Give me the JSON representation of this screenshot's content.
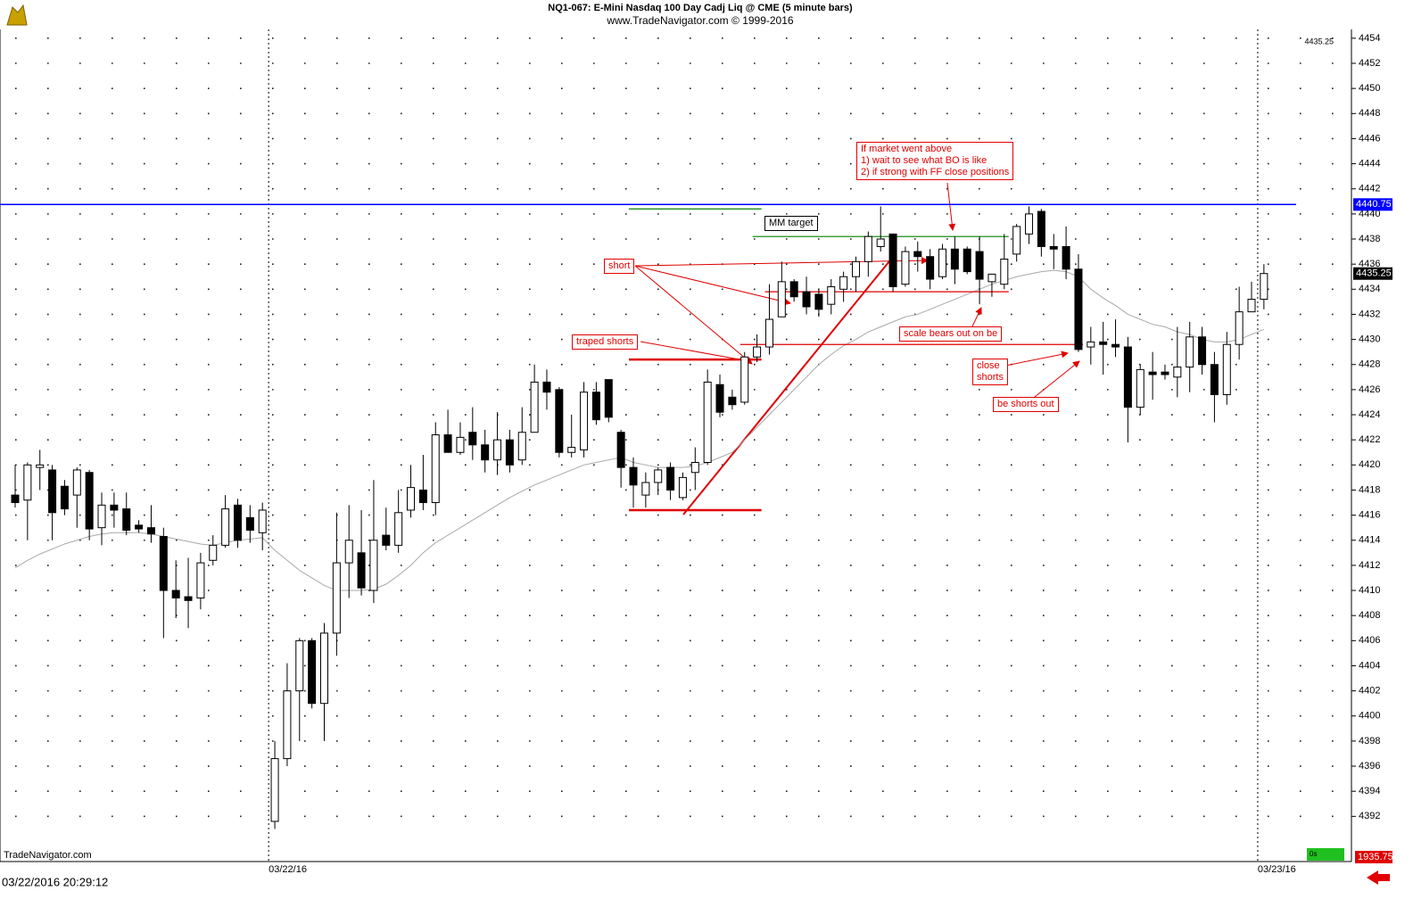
{
  "chart_data": {
    "type": "candlestick",
    "title": "NQ1-067:  E-Mini Nasdaq 100 Day Cadj Liq @ CME  (5 minute bars)",
    "subtitle": "www.TradeNavigator.com © 1999-2016",
    "categories": [
      null,
      null,
      null,
      null,
      null,
      null,
      null,
      null,
      null,
      null,
      null,
      null,
      null,
      null,
      null,
      null,
      null,
      null,
      null,
      null,
      null,
      "03/22/16",
      null,
      null,
      null,
      null,
      null,
      null,
      null,
      null,
      null,
      null,
      null,
      null,
      null,
      null,
      null,
      null,
      null,
      null,
      null,
      null,
      null,
      null,
      null,
      null,
      null,
      null,
      null,
      null,
      null,
      null,
      null,
      null,
      null,
      null,
      null,
      null,
      null,
      null,
      null,
      null,
      null,
      null,
      null,
      null,
      null,
      null,
      null,
      null,
      null,
      null,
      null,
      null,
      null,
      null,
      null,
      null,
      null,
      null,
      null,
      null,
      null,
      null,
      null,
      null,
      null,
      null,
      null,
      null,
      null,
      null,
      null,
      null,
      null,
      null,
      null,
      null,
      null,
      null,
      null,
      "03/23/16"
    ],
    "open": [
      4417.6,
      4417.2,
      4419.8,
      4419.6,
      4418.3,
      4417.6,
      4419.4,
      4415,
      4416.8,
      4416.5,
      4415.2,
      4415,
      4414.3,
      4410,
      4409.5,
      4409.4,
      4412.4,
      4413.6,
      4416.8,
      4415.8,
      4414.6,
      4391.6,
      4396.6,
      4402,
      4406,
      4401,
      4406.6,
      4412.2,
      4413,
      4410,
      4414.4,
      4413.6,
      4416.4,
      4418,
      4417,
      4422.4,
      4421,
      4422.6,
      4421.6,
      4420.4,
      4422,
      4420.4,
      4422.6,
      4426.6,
      4426,
      4421,
      4421.2,
      4425.8,
      4426.8,
      4422.6,
      4419.8,
      4417.6,
      4418.6,
      4419.8,
      4417.4,
      4419.4,
      4420.2,
      4426.4,
      4425.4,
      4425,
      4428.6,
      4429.4,
      4431.8,
      4434.6,
      4433.8,
      4433.6,
      4432.8,
      4434,
      4435,
      4436.2,
      4437.4,
      4438.4,
      4434.4,
      4437,
      4436.6,
      4435,
      4437.2,
      4437.2,
      4437,
      4434.6,
      4434.4,
      4436.8,
      4438.4,
      4440.2,
      4437.4,
      4437.4,
      4435.6,
      4429.4,
      4429.8,
      4429.6,
      4429.4,
      4424.6,
      4427.4,
      4427.4,
      4427,
      4427.8,
      4430.2,
      4428,
      4425.6,
      4429.6,
      4432.2,
      4433.2
    ],
    "high": [
      4420,
      4420.2,
      4421.2,
      4420,
      4418.8,
      4419.8,
      4419.6,
      4417.8,
      4417.8,
      4417.8,
      4415.6,
      4416.8,
      4415,
      4412.4,
      4412.6,
      4413,
      4414.4,
      4417.6,
      4417.3,
      4416.8,
      4417,
      4398,
      4404.2,
      4406.2,
      4406.2,
      4407.4,
      4416.2,
      4416.8,
      4416.4,
      4418.8,
      4416.6,
      4418,
      4420,
      4420.8,
      4423.4,
      4424.4,
      4423.4,
      4424.6,
      4422.8,
      4424.2,
      4422.8,
      4424.6,
      4428,
      4427.6,
      4426.2,
      4424,
      4426.6,
      4426.6,
      4426.8,
      4422.8,
      4420.6,
      4419.4,
      4419.8,
      4420.2,
      4419.4,
      4421.4,
      4427.6,
      4427.2,
      4426,
      4429,
      4430.4,
      4434.4,
      4436.2,
      4434.8,
      4435,
      4434,
      4434.8,
      4435.4,
      4436.6,
      4438.6,
      4440.6,
      4438.4,
      4437.4,
      4437.8,
      4437.2,
      4437.6,
      4438.2,
      4437.4,
      4438.2,
      4435.2,
      4438.4,
      4439.2,
      4440.6,
      4440.4,
      4438.4,
      4439,
      4436.8,
      4431,
      4431.4,
      4431.6,
      4430.2,
      4428,
      4429,
      4428,
      4431,
      4431.4,
      4431,
      4429,
      4430.6,
      4434.2,
      4434.6,
      4436
    ],
    "low": [
      4416.6,
      4414,
      4418,
      4414,
      4416,
      4415,
      4414,
      4413.6,
      4415,
      4414.4,
      4414.6,
      4413.8,
      4406.2,
      4407.8,
      4407,
      4408.5,
      4412,
      4413.4,
      4413.4,
      4413.8,
      4413.2,
      4391,
      4396,
      4398,
      4400.6,
      4398,
      4404.8,
      4409.4,
      4409.6,
      4409,
      4413.2,
      4413,
      4415.8,
      4416.4,
      4416,
      4421,
      4420.8,
      4420.4,
      4419.4,
      4419.2,
      4419.4,
      4420,
      4422.6,
      4424.4,
      4420.6,
      4420.6,
      4420.6,
      4423.2,
      4423.4,
      4418.2,
      4416.6,
      4416.6,
      4417.6,
      4417.2,
      4417.2,
      4418,
      4420,
      4423.8,
      4424.4,
      4424.8,
      4428.2,
      4428.8,
      4431.8,
      4433,
      4432,
      4431.8,
      4432,
      4433,
      4433.8,
      4435,
      4437,
      4433.8,
      4434.2,
      4435.4,
      4434,
      4434.8,
      4434.4,
      4435.2,
      4432.8,
      4433.4,
      4434,
      4436.2,
      4437.6,
      4436.6,
      4435.6,
      4434.8,
      4429,
      4428,
      4427.2,
      4428.6,
      4421.8,
      4424,
      4425.2,
      4426.8,
      4425.4,
      4425.8,
      4427.2,
      4423.4,
      4424.8,
      4428.4,
      4432.2,
      4432.4
    ],
    "close": [
      4417,
      4420,
      4420,
      4416.2,
      4416.5,
      4419.6,
      4414.9,
      4416.8,
      4416.4,
      4414.8,
      4414.9,
      4414.5,
      4410,
      4409.4,
      4409.2,
      4412.2,
      4413.6,
      4416.5,
      4414,
      4414.8,
      4416.4,
      4396.6,
      4402,
      4406,
      4401,
      4406.6,
      4412.2,
      4414,
      4410.2,
      4414,
      4413.6,
      4416.2,
      4418.2,
      4417,
      4422.4,
      4421,
      4422.2,
      4421.6,
      4420.4,
      4422,
      4420,
      4422.6,
      4426.6,
      4425.8,
      4421,
      4421.4,
      4425.8,
      4423.6,
      4423.8,
      4419.8,
      4418.4,
      4418.6,
      4419.6,
      4418,
      4419,
      4420.2,
      4426.6,
      4424.2,
      4424.8,
      4428.6,
      4429.4,
      4431.6,
      4434.6,
      4433.4,
      4432.6,
      4432.4,
      4434.2,
      4435,
      4436.2,
      4438.2,
      4438,
      4434.2,
      4437,
      4436.6,
      4434.8,
      4437.2,
      4435.6,
      4435.4,
      4434.8,
      4435.2,
      4436.4,
      4439,
      4440,
      4437.4,
      4437.2,
      4435.6,
      4429.2,
      4429.8,
      4429.6,
      4429.4,
      4424.6,
      4427.6,
      4427.2,
      4427.2,
      4427.8,
      4430.2,
      4428,
      4425.6,
      4429.6,
      4432.2,
      4433.2,
      4435.25
    ],
    "up_color": "#ffffff",
    "down_color": "#000000",
    "lines": [
      {
        "color": "#a8a8a8",
        "values": [
          4411.8,
          4412.4,
          4412.9,
          4413.3,
          4413.7,
          4414,
          4414.3,
          4414.5,
          4414.6,
          4414.6,
          4414.6,
          4414.5,
          4414.3,
          4414.1,
          4413.9,
          4413.7,
          4413.6,
          4413.8,
          4414,
          4414.1,
          4414.2,
          4413.2,
          4412.4,
          4411.6,
          4411,
          4410.4,
          4410,
          4410,
          4410,
          4410.1,
          4410.5,
          4411.2,
          4412,
          4413,
          4413.8,
          4414.4,
          4415,
          4415.6,
          4416.2,
          4416.8,
          4417.4,
          4417.9,
          4418.4,
          4418.8,
          4419.2,
          4419.6,
          4420,
          4420.2,
          4420.4,
          4420.6,
          4420.2,
          4420,
          4419.8,
          4419.8,
          4419.8,
          4419.9,
          4420.2,
          4420.6,
          4421,
          4422,
          4423,
          4424,
          4425,
          4426,
          4427,
          4428,
          4428.8,
          4429.5,
          4430,
          4430.6,
          4431,
          4431.4,
          4431.8,
          4432,
          4432.4,
          4432.8,
          4433.2,
          4433.6,
          4434,
          4434.4,
          4434.7,
          4435,
          4435.2,
          4435.4,
          4435.5,
          4435.4,
          4435,
          4434,
          4433.3,
          4432.7,
          4432,
          4431.6,
          4431.2,
          4431,
          4430.6,
          4430.4,
          4430,
          4429.8,
          4429.8,
          4430,
          4430.4,
          4430.8
        ]
      }
    ],
    "levels": [
      {
        "value": 4440.75,
        "color": "#0000ff"
      }
    ],
    "segments": [
      {
        "value": 4440.4,
        "from": 50,
        "to": 60,
        "color": "#008000"
      },
      {
        "value": 4438.2,
        "from": 60,
        "to": 80,
        "color": "#008000"
      },
      {
        "value": 4428.4,
        "from": 50,
        "to": 60,
        "color": "#e00000"
      },
      {
        "value": 4416.4,
        "from": 50,
        "to": 60,
        "color": "#e00000"
      },
      {
        "value": 4433.8,
        "from": 61,
        "to": 80,
        "color": "#e00000"
      },
      {
        "value": 4429.6,
        "from": 59,
        "to": 86,
        "color": "#e00000"
      }
    ],
    "ylim": [
      4388.4,
      4454.7
    ],
    "yticks": [
      4392,
      4394,
      4396,
      4398,
      4400,
      4402,
      4404,
      4406,
      4408,
      4410,
      4412,
      4414,
      4416,
      4418,
      4420,
      4422,
      4424,
      4426,
      4428,
      4430,
      4432,
      4434,
      4436,
      4438,
      4440,
      4442,
      4444,
      4446,
      4448,
      4450,
      4452,
      4454
    ],
    "grid": true,
    "annotations": {
      "market": [
        "If market went above",
        "1) wait to see what BO is like",
        "2) if strong with FF close positions"
      ],
      "mm_target": "MM target",
      "short": "short",
      "traped": "traped shorts",
      "scale": "scale bears out on be",
      "close": [
        "close",
        "shorts"
      ],
      "be_out": "be shorts out"
    },
    "footer": {
      "source": "TradeNavigator.com",
      "datetime": "03/22/2016 20:29:12",
      "box": "1935.75",
      "status": "0s"
    }
  }
}
